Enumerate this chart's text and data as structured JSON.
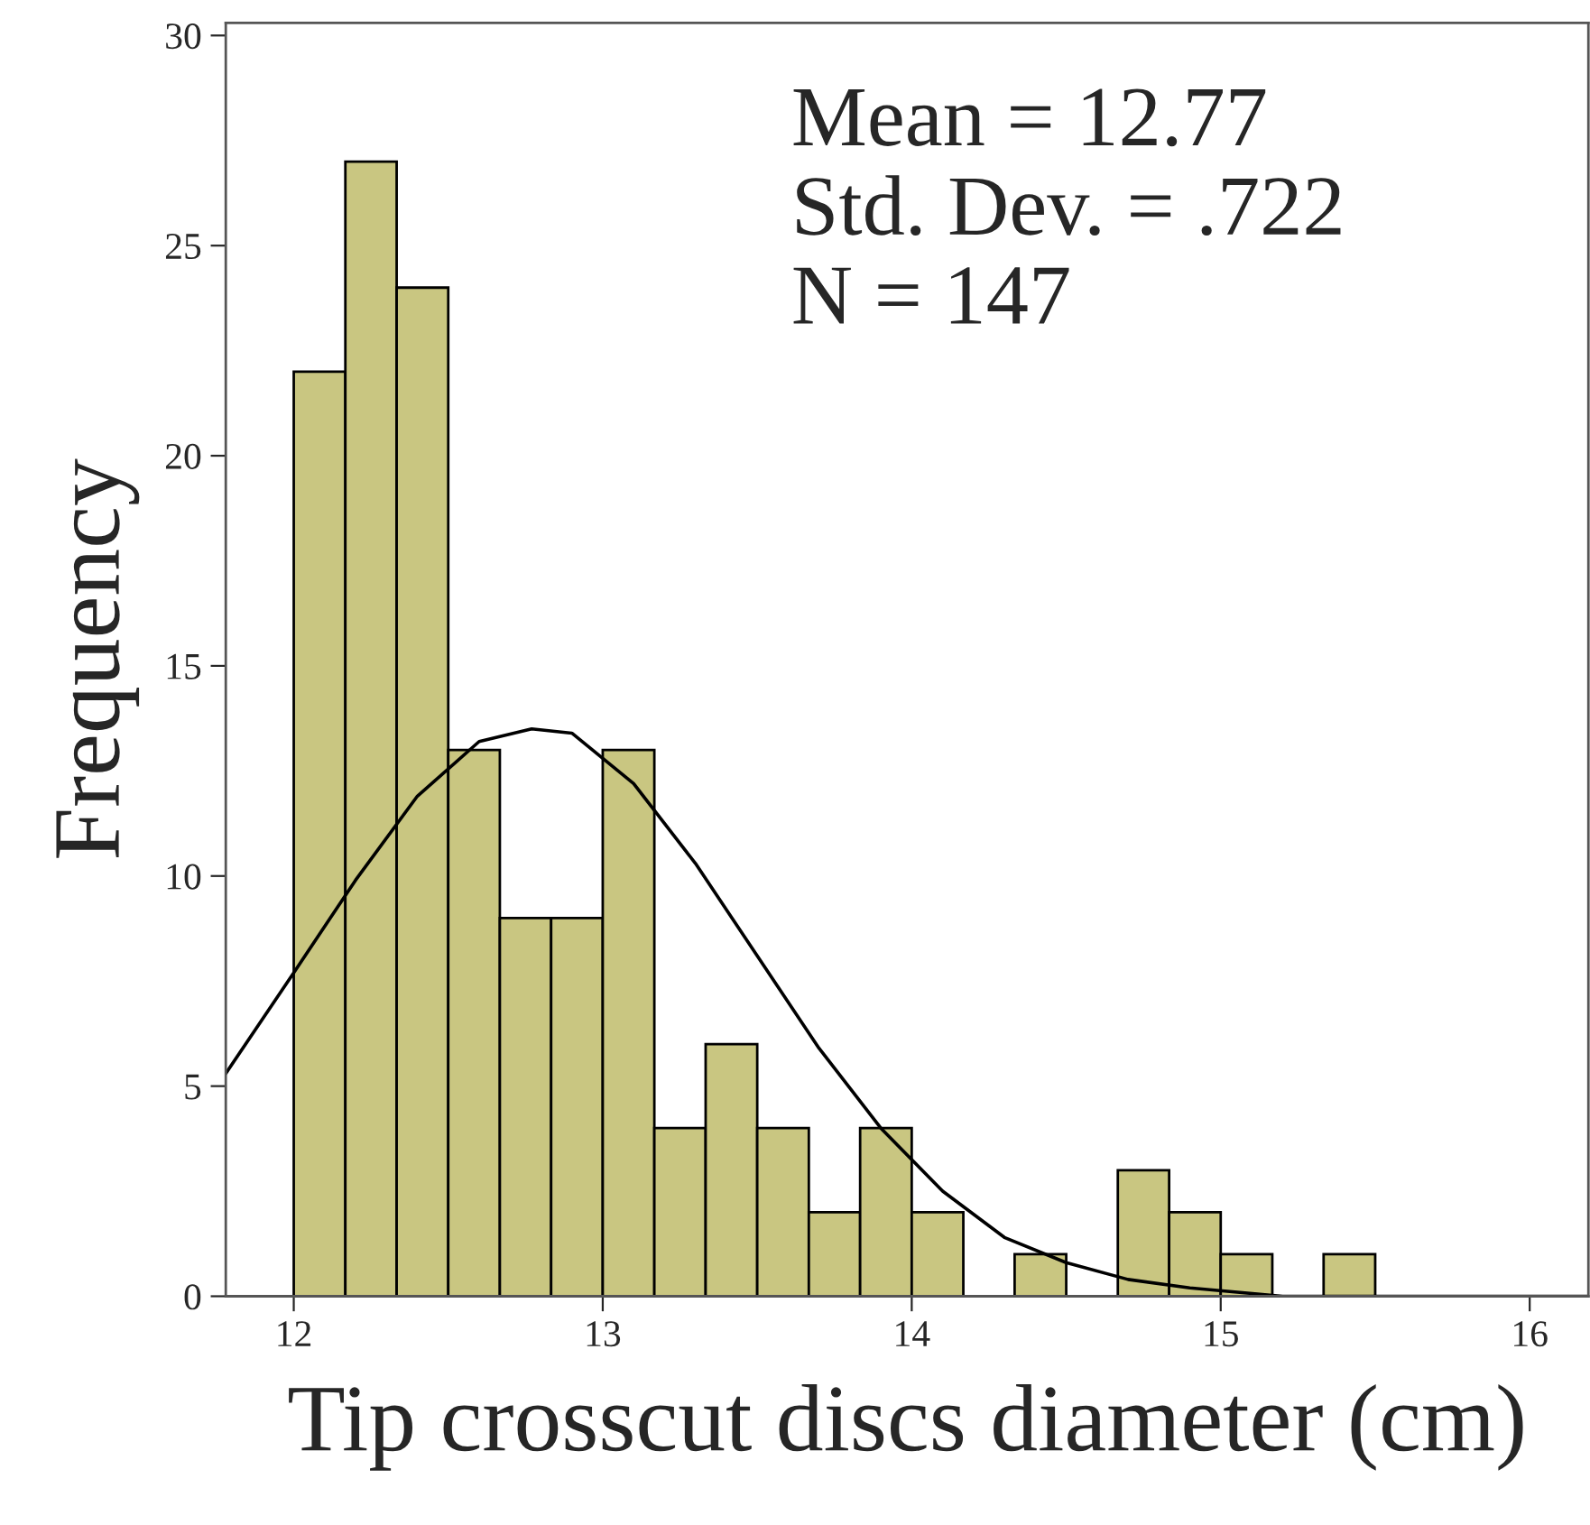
{
  "chart_data": {
    "type": "histogram",
    "xlabel": "Tip crosscut discs diameter (cm)",
    "ylabel": "Frequency",
    "bins": [
      12,
      12.167,
      12.333,
      12.5,
      12.667,
      12.833,
      13,
      13.167,
      13.333,
      13.5,
      13.667,
      13.833,
      14,
      14.167,
      14.333,
      14.5,
      14.667,
      14.833,
      15,
      15.167,
      15.333,
      15.5
    ],
    "values": [
      22,
      27,
      24,
      13,
      9,
      9,
      13,
      4,
      6,
      4,
      2,
      4,
      2,
      0,
      1,
      0,
      3,
      2,
      1,
      0,
      1
    ],
    "color": "#c9c681",
    "series": [
      {
        "type": "line",
        "color": "#000000",
        "x": [
          11.78,
          12.0,
          12.2,
          12.4,
          12.6,
          12.77,
          12.9,
          13.1,
          13.3,
          13.5,
          13.7,
          13.9,
          14.1,
          14.3,
          14.5,
          14.7,
          14.9,
          15.2,
          16.19
        ],
        "values": [
          5.3,
          7.7,
          9.9,
          11.9,
          13.2,
          13.5,
          13.4,
          12.2,
          10.3,
          8.1,
          5.9,
          4.0,
          2.5,
          1.4,
          0.8,
          0.4,
          0.2,
          0.0,
          0.0
        ]
      }
    ],
    "annotations": [
      "Mean = 12.77",
      "Std. Dev. = .722",
      "N = 147"
    ],
    "xlim": [
      11.78,
      16.19
    ],
    "ylim": [
      0,
      30.3
    ],
    "xticks": [
      12,
      13,
      14,
      15,
      16
    ],
    "yticks": [
      0,
      5,
      10,
      15,
      20,
      25,
      30
    ],
    "grid": false
  }
}
